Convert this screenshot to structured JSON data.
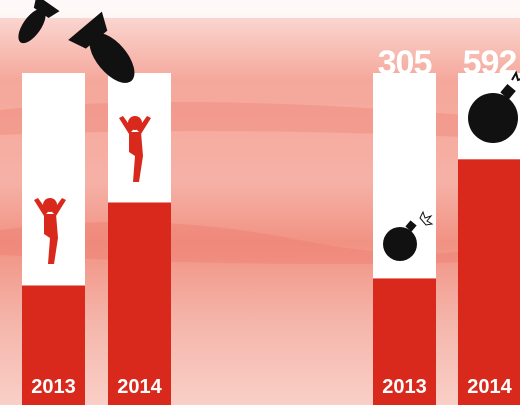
{
  "chart_data": [
    {
      "type": "bar",
      "categories": [
        "2013",
        "2014"
      ],
      "values": [
        36,
        61
      ],
      "color": "#d9291c",
      "ylim": [
        0,
        100
      ]
    },
    {
      "type": "bar",
      "categories": [
        "2013",
        "2014"
      ],
      "values": [
        305,
        592
      ],
      "color": "#d9291c",
      "ylim": [
        0,
        800
      ]
    }
  ]
}
